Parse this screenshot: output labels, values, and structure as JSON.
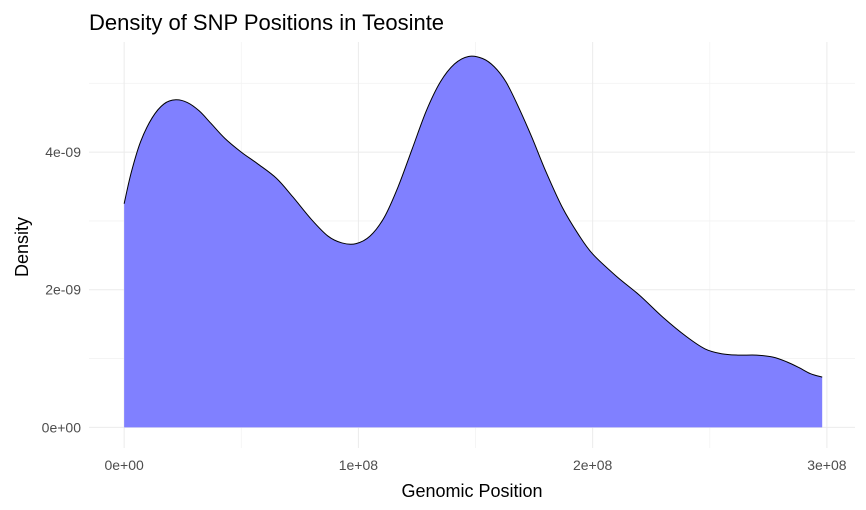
{
  "chart_data": {
    "type": "area",
    "title": "Density of SNP Positions in Teosinte",
    "xlabel": "Genomic Position",
    "ylabel": "Density",
    "xlim": [
      -15000000,
      312000000
    ],
    "ylim": [
      -3e-10,
      5.6e-09
    ],
    "x_ticks": [
      0,
      100000000,
      200000000,
      300000000
    ],
    "x_tick_labels": [
      "0e+00",
      "1e+08",
      "2e+08",
      "3e+08"
    ],
    "y_ticks": [
      0,
      2e-09,
      4e-09
    ],
    "y_tick_labels": [
      "0e+00",
      "2e-09",
      "4e-09"
    ],
    "grid": true,
    "legend": "none",
    "fill_color": "#8080ff",
    "line_color": "#000000",
    "series": [
      {
        "name": "density",
        "x": [
          0,
          3000000,
          7000000,
          12000000,
          17000000,
          22000000,
          27000000,
          32000000,
          37000000,
          43000000,
          50000000,
          57000000,
          65000000,
          72000000,
          80000000,
          87000000,
          93000000,
          99000000,
          105000000,
          111000000,
          117000000,
          123000000,
          129000000,
          135000000,
          141000000,
          147000000,
          153000000,
          158000000,
          163000000,
          168000000,
          174000000,
          180000000,
          187000000,
          194000000,
          200000000,
          210000000,
          220000000,
          230000000,
          240000000,
          248000000,
          255000000,
          262000000,
          270000000,
          277000000,
          283000000,
          288000000,
          293000000,
          298000000
        ],
        "y": [
          3.25e-09,
          3.7e-09,
          4.15e-09,
          4.5e-09,
          4.7e-09,
          4.76e-09,
          4.72e-09,
          4.6e-09,
          4.42e-09,
          4.2e-09,
          4e-09,
          3.83e-09,
          3.62e-09,
          3.35e-09,
          3.02e-09,
          2.78e-09,
          2.68e-09,
          2.67e-09,
          2.78e-09,
          3.05e-09,
          3.5e-09,
          4.05e-09,
          4.6e-09,
          5.02e-09,
          5.28e-09,
          5.39e-09,
          5.36e-09,
          5.24e-09,
          5.02e-09,
          4.68e-09,
          4.22e-09,
          3.72e-09,
          3.2e-09,
          2.8e-09,
          2.52e-09,
          2.2e-09,
          1.92e-09,
          1.6e-09,
          1.32e-09,
          1.14e-09,
          1.07e-09,
          1.05e-09,
          1.05e-09,
          1.02e-09,
          9.5e-10,
          8.7e-10,
          7.8e-10,
          7.3e-10
        ]
      }
    ]
  }
}
